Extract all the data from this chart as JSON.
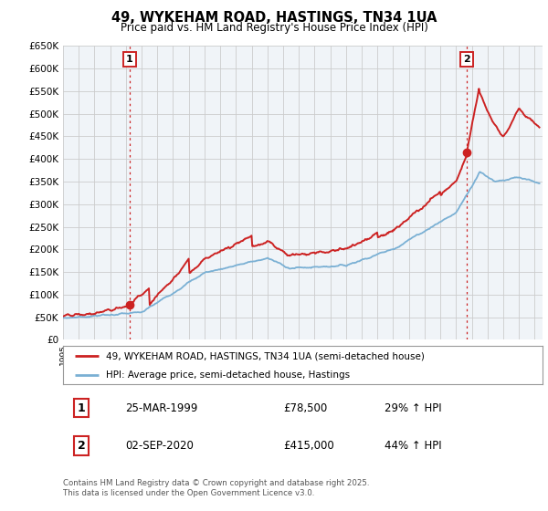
{
  "title": "49, WYKEHAM ROAD, HASTINGS, TN34 1UA",
  "subtitle": "Price paid vs. HM Land Registry's House Price Index (HPI)",
  "legend_line1": "49, WYKEHAM ROAD, HASTINGS, TN34 1UA (semi-detached house)",
  "legend_line2": "HPI: Average price, semi-detached house, Hastings",
  "point1_date": "25-MAR-1999",
  "point1_price": "£78,500",
  "point1_hpi": "29% ↑ HPI",
  "point2_date": "02-SEP-2020",
  "point2_price": "£415,000",
  "point2_hpi": "44% ↑ HPI",
  "footer": "Contains HM Land Registry data © Crown copyright and database right 2025.\nThis data is licensed under the Open Government Licence v3.0.",
  "red_color": "#cc2222",
  "blue_color": "#7ab0d4",
  "grid_color": "#cccccc",
  "bg_color": "#ffffff",
  "plot_bg": "#f0f4f8",
  "ylim": [
    0,
    650000
  ],
  "xlim_start": 1995.0,
  "xlim_end": 2025.5,
  "point1_x": 1999.23,
  "point1_y": 78500,
  "point2_x": 2020.67,
  "point2_y": 415000,
  "vline1_x": 1999.23,
  "vline2_x": 2020.67
}
